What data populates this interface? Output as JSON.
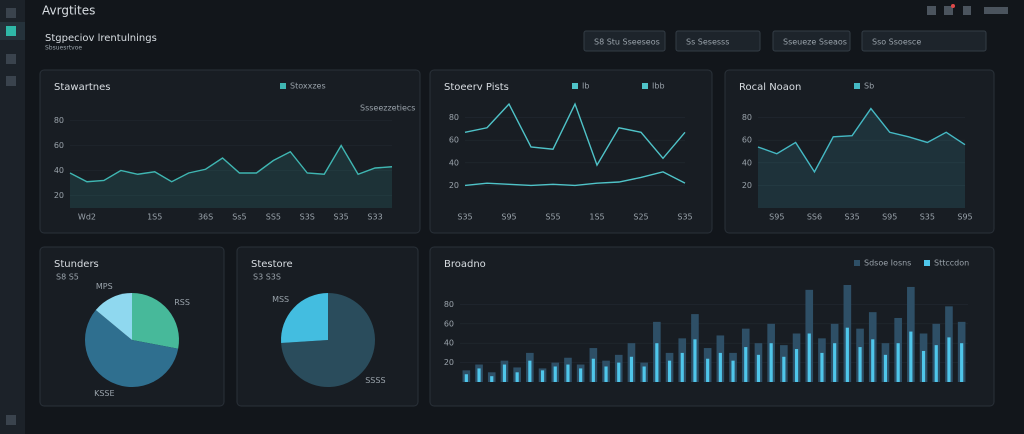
{
  "app": {
    "title": "Avrgtites",
    "heading": "Stgpeciov lrentulnings",
    "subheading": "Sbsuesrtvoe"
  },
  "toolbar": [
    "S8 Stu Sseeseos",
    "Ss Sesesss",
    "Sseueze Sseaos",
    "Sso Ssoesce"
  ],
  "chart_data": [
    {
      "type": "area",
      "title": "Stawartnes",
      "legend_note": "Ssseezzetiecs",
      "color": "#3fb6b2",
      "categories": [
        null,
        "Wd2",
        null,
        null,
        null,
        "1S5",
        null,
        null,
        "36S",
        null,
        "Ss5",
        null,
        "SS5",
        null,
        "S3S",
        null,
        "S35",
        null,
        "S33",
        null
      ],
      "series": [
        {
          "name": "Stoxxzes",
          "color": "#3fb6b2",
          "values": [
            38,
            31,
            32,
            40,
            37,
            39,
            31,
            38,
            41,
            50,
            38,
            38,
            48,
            55,
            38,
            37,
            60,
            37,
            42,
            43
          ]
        }
      ],
      "ylim": [
        10,
        90
      ],
      "yticks": [
        20,
        40,
        60,
        80
      ]
    },
    {
      "type": "line",
      "title": "Stoeerv Pists",
      "categories": [
        "S35",
        null,
        "S95",
        null,
        "S55",
        null,
        "1S5",
        null,
        "S25",
        null,
        "S35"
      ],
      "series": [
        {
          "name": "Ib",
          "color": "#4fc3c8",
          "values": [
            67,
            71,
            92,
            54,
            52,
            92,
            38,
            71,
            67,
            44,
            67
          ]
        },
        {
          "name": "Ibb",
          "color": "#4fc3c8",
          "values": [
            20,
            22,
            21,
            20,
            21,
            20,
            22,
            23,
            27,
            32,
            22
          ]
        }
      ],
      "ylim": [
        0,
        100
      ],
      "yticks": [
        20,
        40,
        60,
        80
      ]
    },
    {
      "type": "area",
      "title": "Rocal Noaon",
      "categories": [
        null,
        "S95",
        null,
        "SS6",
        null,
        "S35",
        null,
        "S95",
        null,
        "S35",
        null,
        "S95"
      ],
      "series": [
        {
          "name": "Sb",
          "color": "#45b9c4",
          "values": [
            54,
            48,
            58,
            32,
            63,
            64,
            88,
            67,
            63,
            58,
            67,
            56
          ]
        }
      ],
      "ylim": [
        0,
        100
      ],
      "yticks": [
        20,
        40,
        60,
        80
      ]
    },
    {
      "type": "pie",
      "title": "Stunders",
      "subtitle": "S8 S5",
      "categories": [
        "RSS",
        "KSSE",
        "MPS"
      ],
      "values": [
        28,
        58,
        14
      ],
      "colors": [
        "#47b99a",
        "#2f6f8f",
        "#8fd8ef"
      ]
    },
    {
      "type": "pie",
      "title": "Stestore",
      "subtitle": "S3 S3S",
      "categories": [
        "SSSS",
        "MSS"
      ],
      "values": [
        74,
        26
      ],
      "colors": [
        "#2a4c5c",
        "#43bde0"
      ]
    },
    {
      "type": "bar",
      "title": "Broadno",
      "categories": [
        null,
        null,
        null,
        null,
        null,
        null,
        null,
        null,
        null,
        null,
        null,
        null,
        null,
        null,
        null,
        null,
        null,
        null,
        null,
        null,
        null,
        null,
        null,
        null,
        null,
        null,
        null,
        null,
        null,
        null,
        null,
        null,
        null,
        null,
        null,
        null,
        null,
        null,
        null,
        null
      ],
      "series": [
        {
          "name": "Sdsoe Iosns",
          "color": "#2e4f66",
          "values": [
            12,
            18,
            10,
            22,
            15,
            30,
            14,
            20,
            25,
            18,
            35,
            22,
            28,
            40,
            20,
            62,
            30,
            45,
            70,
            35,
            48,
            30,
            55,
            40,
            60,
            38,
            50,
            95,
            45,
            60,
            100,
            55,
            72,
            40,
            66,
            98,
            50,
            60,
            78,
            62
          ]
        },
        {
          "name": "Sttccdon",
          "color": "#4fc6ea",
          "values": [
            8,
            14,
            6,
            18,
            10,
            22,
            12,
            16,
            18,
            14,
            24,
            16,
            20,
            26,
            16,
            40,
            22,
            30,
            44,
            24,
            30,
            22,
            36,
            28,
            40,
            26,
            34,
            50,
            30,
            40,
            56,
            36,
            44,
            28,
            40,
            52,
            32,
            38,
            46,
            40
          ]
        }
      ],
      "ylim": [
        0,
        100
      ],
      "yticks": [
        20,
        40,
        60,
        80
      ]
    }
  ]
}
